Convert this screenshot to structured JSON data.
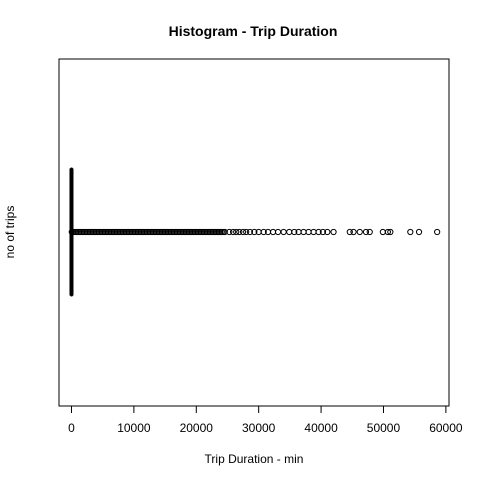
{
  "chart_data": {
    "type": "boxplot",
    "orientation": "horizontal",
    "title": "Histogram - Trip Duration",
    "xlabel": "Trip Duration - min",
    "ylabel": "no of trips",
    "xlim": [
      -2000,
      60500
    ],
    "xticks": [
      0,
      10000,
      20000,
      30000,
      40000,
      50000,
      60000
    ],
    "xtick_labels": [
      "0",
      "10000",
      "20000",
      "30000",
      "40000",
      "50000",
      "60000"
    ],
    "grid": false,
    "legend": "none",
    "box": {
      "min": 0,
      "q1": 6,
      "median": 10,
      "q3": 18,
      "whisker_high": 35
    },
    "outliers_dense_range": [
      50,
      24800
    ],
    "outliers": [
      25300,
      25900,
      26400,
      26900,
      27500,
      28000,
      28600,
      29300,
      30000,
      30800,
      31500,
      32300,
      33100,
      34000,
      34900,
      35700,
      36400,
      37200,
      38000,
      38800,
      39600,
      40300,
      41000,
      42000,
      44600,
      45200,
      46200,
      47200,
      47800,
      49900,
      50700,
      51100,
      54300,
      55700,
      58600
    ],
    "colors": {
      "box": "#000000",
      "points": "#000000",
      "frame": "#000000",
      "background": "#ffffff"
    }
  }
}
